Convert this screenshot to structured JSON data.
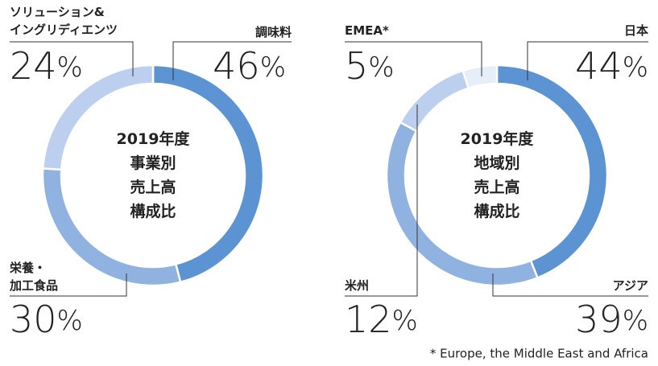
{
  "chart_data": [
    {
      "type": "pie",
      "donut": true,
      "center_label": [
        "2019年度",
        "事業別",
        "売上高",
        "構成比"
      ],
      "categories": [
        "調味料",
        "栄養・\n加工食品",
        "ソリューション&\nイングリディエンツ"
      ],
      "values": [
        46,
        30,
        24
      ],
      "value_labels": [
        "46%",
        "30%",
        "24%"
      ],
      "colors": [
        "#5b93d3",
        "#8fb2e0",
        "#bccfee"
      ]
    },
    {
      "type": "pie",
      "donut": true,
      "center_label": [
        "2019年度",
        "地域別",
        "売上高",
        "構成比"
      ],
      "categories": [
        "日本",
        "アジア",
        "米州",
        "EMEA*"
      ],
      "values": [
        44,
        39,
        12,
        5
      ],
      "value_labels": [
        "44%",
        "39%",
        "12%",
        "5%"
      ],
      "colors": [
        "#5b93d3",
        "#8fb2e0",
        "#bccfee",
        "#e6eef9"
      ],
      "footnote": "* Europe, the Middle East and Africa"
    }
  ]
}
